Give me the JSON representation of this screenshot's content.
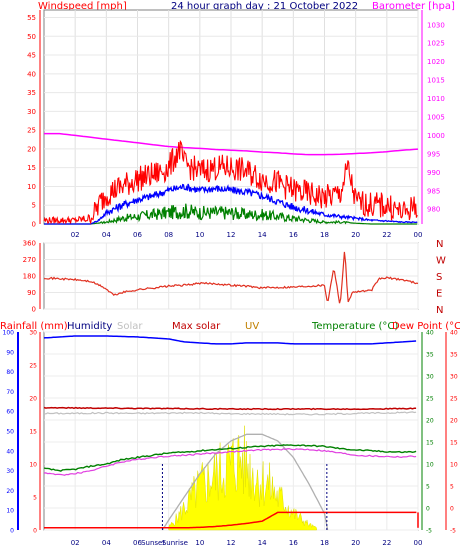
{
  "colors": {
    "wind_gust": "#ff0000",
    "wind_avg": "#0000ff",
    "wind_min": "#008000",
    "barometer": "#ff00ff",
    "wind_dir": "#e03020",
    "rain": "#ff0000",
    "humidity": "#0000ff",
    "solar": "#c0c0c0",
    "max_solar": "#c00000",
    "uv": "#c08000",
    "temperature": "#008000",
    "dew_point": "#ff0000",
    "feels_like": "#e040e0",
    "solar_fill": "#ffff00",
    "rain_fill": "#ffff00"
  },
  "chart_data": [
    {
      "type": "line",
      "title": "24 hour graph day : 21 October 2022",
      "left_label": "Windspeed [mph]",
      "right_label": "Barometer [hpa]",
      "x_ticks": [
        "02",
        "04",
        "06",
        "08",
        "10",
        "12",
        "14",
        "16",
        "18",
        "20",
        "22",
        "00"
      ],
      "ylim_left": [
        0,
        57
      ],
      "yticks_left": [
        0,
        5,
        10,
        15,
        20,
        25,
        30,
        35,
        40,
        45,
        50,
        55
      ],
      "ylim_right": [
        976,
        1034
      ],
      "yticks_right": [
        980,
        985,
        990,
        995,
        1000,
        1005,
        1010,
        1015,
        1020,
        1025,
        1030
      ],
      "series": [
        {
          "key": "barometer",
          "axis": "right",
          "hours": [
            0,
            1,
            2,
            3,
            4,
            5,
            6,
            7,
            8,
            9,
            10,
            11,
            12,
            13,
            14,
            15,
            16,
            17,
            18,
            19,
            20,
            21,
            22,
            23,
            24
          ],
          "values": [
            1000.5,
            1000.5,
            1000,
            999.5,
            999,
            998.5,
            998,
            997.5,
            997,
            996.7,
            996.5,
            996.2,
            996,
            995.8,
            995.5,
            995.3,
            995,
            994.8,
            994.8,
            994.9,
            995.1,
            995.3,
            995.6,
            996,
            996.3
          ]
        },
        {
          "key": "wind_gust",
          "axis": "left",
          "hours": [
            0,
            1,
            2,
            3,
            3.5,
            4,
            5,
            6,
            7,
            8,
            8.7,
            9,
            10,
            11,
            12,
            13,
            14,
            15,
            16,
            17,
            18,
            19,
            19.5,
            20,
            21,
            22,
            23,
            24
          ],
          "values": [
            1,
            1,
            1,
            1.5,
            5,
            8,
            10,
            12,
            13,
            15,
            20,
            16,
            14,
            15,
            15,
            14,
            12,
            11,
            9,
            8,
            7,
            8,
            15,
            6,
            5,
            5,
            3,
            5
          ]
        },
        {
          "key": "wind_avg",
          "axis": "left",
          "hours": [
            0,
            2,
            3,
            3.5,
            4,
            5,
            6,
            7,
            8,
            9,
            10,
            11,
            12,
            13,
            14,
            15,
            16,
            17,
            18,
            19,
            20,
            21,
            22,
            23,
            24
          ],
          "values": [
            0,
            0,
            0,
            1,
            3,
            5,
            6.5,
            7.5,
            9,
            10,
            9,
            9.5,
            9,
            8.5,
            7.5,
            6,
            4.5,
            3.5,
            2.5,
            2,
            1.5,
            1,
            0.8,
            0.5,
            0.5
          ]
        },
        {
          "key": "wind_min",
          "axis": "left",
          "hours": [
            0,
            3,
            4,
            5,
            6,
            7,
            8,
            9,
            10,
            11,
            12,
            13,
            14,
            15,
            16,
            17,
            18,
            19,
            20,
            21,
            24
          ],
          "values": [
            0,
            0,
            0.5,
            1.5,
            2,
            2.5,
            3,
            3.5,
            3,
            3,
            3,
            2.5,
            2.5,
            2,
            1.5,
            1,
            0.5,
            0.5,
            0.2,
            0,
            0
          ]
        }
      ]
    },
    {
      "type": "line",
      "right_tick_labels": [
        "N",
        "W",
        "S",
        "E",
        "N"
      ],
      "left_tick_labels": [
        "360",
        "270",
        "180",
        "90",
        "0"
      ],
      "ylim": [
        0,
        360
      ],
      "series": [
        {
          "key": "wind_dir",
          "name": "Wind direction",
          "hours": [
            0,
            1,
            2,
            3,
            3.8,
            4.5,
            5,
            6,
            7,
            8,
            9,
            10,
            11,
            12,
            13,
            14,
            15,
            16,
            17,
            18,
            18.2,
            18.6,
            19,
            19.3,
            19.5,
            19.8,
            20,
            21,
            21.5,
            22,
            23,
            24
          ],
          "values": [
            170,
            165,
            160,
            150,
            120,
            75,
            90,
            105,
            115,
            125,
            130,
            140,
            138,
            130,
            125,
            115,
            118,
            120,
            125,
            130,
            30,
            230,
            15,
            330,
            40,
            90,
            95,
            100,
            165,
            170,
            160,
            140
          ]
        }
      ]
    },
    {
      "type": "line",
      "header_labels": [
        "Rainfall (mm)",
        "Humidity",
        "Solar",
        "Max solar",
        "UV",
        "Temperature (°C)",
        "Dew Point (°C)"
      ],
      "humidity_axis": {
        "ylim": [
          0,
          100
        ],
        "ticks": [
          0,
          10,
          20,
          30,
          40,
          50,
          60,
          70,
          80,
          90,
          100
        ]
      },
      "solar_axis": {
        "ylim": [
          0,
          30
        ],
        "ticks": [
          0,
          5,
          10,
          15,
          20,
          25,
          30
        ]
      },
      "temp_axis": {
        "ylim": [
          -5,
          40
        ],
        "ticks": [
          -5,
          0,
          5,
          10,
          15,
          20,
          25,
          30,
          35,
          40
        ]
      },
      "x_ticks": [
        "02",
        "04",
        "06",
        "08",
        "10",
        "12",
        "14",
        "16",
        "18",
        "20",
        "22",
        "00"
      ],
      "markers": [
        "Sunrise",
        "Sunset"
      ],
      "series": [
        {
          "key": "humidity",
          "axis": "humidity",
          "hours": [
            0,
            2,
            4,
            6,
            7,
            8,
            9,
            10,
            11,
            12,
            13,
            14,
            15,
            16,
            17,
            18,
            19,
            20,
            21,
            22,
            23,
            24
          ],
          "values": [
            97,
            98,
            98,
            97.5,
            97,
            96.5,
            95,
            94.5,
            94,
            94,
            94.5,
            94.5,
            94.5,
            94,
            94,
            94,
            94,
            94,
            94,
            94.5,
            95,
            95.5
          ]
        },
        {
          "key": "max_solar",
          "axis": "temp",
          "hours": [
            0,
            4,
            8,
            12,
            16,
            20,
            24
          ],
          "values": [
            22.8,
            22.7,
            22.6,
            22.5,
            22.5,
            22.5,
            22.6
          ]
        },
        {
          "key": "solar",
          "axis": "temp",
          "hours": [
            0,
            2,
            4,
            6,
            8,
            10,
            12,
            14,
            16,
            18,
            20,
            22,
            24
          ],
          "values": [
            21.5,
            21.5,
            21.6,
            21.5,
            21.6,
            21.6,
            21.4,
            21.4,
            21.3,
            21.3,
            21.5,
            21.6,
            21.8
          ]
        },
        {
          "key": "temperature",
          "axis": "temp",
          "hours": [
            0,
            1,
            2,
            3,
            4,
            5,
            6,
            7,
            8,
            9,
            10,
            11,
            12,
            13,
            14,
            15,
            16,
            17,
            18,
            19,
            20,
            21,
            22,
            23,
            24
          ],
          "values": [
            9,
            8.5,
            8.8,
            9.5,
            10,
            11,
            11.5,
            12,
            12.5,
            12.7,
            13,
            13.3,
            13.5,
            13.8,
            14,
            14.2,
            14.3,
            14.2,
            14,
            13.5,
            13.2,
            13,
            12.8,
            12.7,
            12.8
          ]
        },
        {
          "key": "feels_like",
          "axis": "temp",
          "hours": [
            0,
            1,
            2,
            3,
            4,
            5,
            6,
            7,
            8,
            9,
            10,
            11,
            12,
            13,
            14,
            15,
            16,
            17,
            18,
            19,
            20,
            21,
            22,
            23,
            24
          ],
          "values": [
            8,
            7.5,
            7.8,
            8.5,
            9.5,
            10.5,
            11,
            11.5,
            11.8,
            12,
            12.3,
            12.5,
            12.8,
            13,
            13.2,
            13.3,
            13.4,
            13.3,
            13,
            12.5,
            12,
            11.8,
            11.7,
            11.6,
            11.8
          ]
        },
        {
          "key": "max_solar_curve",
          "axis": "solar",
          "hours": [
            7.6,
            8,
            9,
            10,
            11,
            12,
            13,
            14,
            15,
            16,
            17,
            18,
            18.2
          ],
          "values": [
            0,
            1.5,
            5,
            8.5,
            11.5,
            13.5,
            14.5,
            14.5,
            13.5,
            11,
            7,
            2.5,
            0
          ]
        },
        {
          "key": "solar_fill",
          "axis": "solar",
          "hours": [
            8,
            8.5,
            9,
            9.5,
            10,
            10.5,
            11,
            11.5,
            12,
            12.5,
            13,
            13.5,
            14,
            14.5,
            15,
            15.5,
            16,
            16.5,
            17,
            17.5
          ],
          "values": [
            0.5,
            2,
            4,
            6,
            8,
            9,
            10,
            11,
            12,
            13,
            12,
            10,
            9,
            8,
            6,
            5,
            3,
            2,
            1,
            0.3
          ]
        },
        {
          "key": "rain",
          "axis": "temp",
          "hours": [
            0,
            8,
            9,
            10,
            11,
            12,
            13,
            14,
            14.5,
            15,
            16,
            17,
            18,
            19,
            20,
            21,
            22,
            23,
            24
          ],
          "values": [
            -4.5,
            -4.5,
            -4.5,
            -4.4,
            -4.2,
            -3.9,
            -3.5,
            -3,
            -2,
            -1,
            -1,
            -1,
            -1,
            -1,
            -1,
            -1,
            -1,
            -1,
            -1
          ]
        }
      ]
    }
  ]
}
